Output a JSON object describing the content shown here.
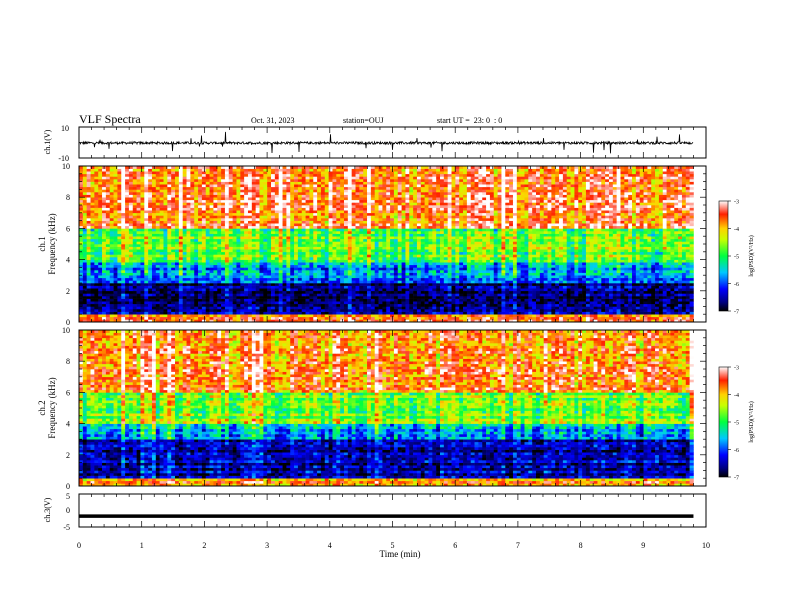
{
  "header": {
    "title": "VLF Spectra",
    "date": "Oct. 31, 2023",
    "station": "station=OUJ",
    "start": "start UT =  23: 0  : 0"
  },
  "chart_data": [
    {
      "type": "line",
      "panel": "ch1-waveform",
      "ylabel": "ch.1(V)",
      "ylim": [
        -10,
        10
      ],
      "yticks": [
        "10",
        "-10"
      ],
      "xlim": [
        0,
        10
      ],
      "series": [
        {
          "description": "dense noisy waveform around 0 V, amplitude mostly within ±2 V with spikes",
          "color": "#000000"
        }
      ]
    },
    {
      "type": "heatmap",
      "panel": "ch1-spectrogram",
      "ylabel": "ch.1\nFrequency (kHz)",
      "ylabel_line1": "ch.1",
      "ylabel_line2": "Frequency (kHz)",
      "ylim": [
        0,
        10
      ],
      "yticks": [
        "0",
        "2",
        "4",
        "6",
        "8",
        "10"
      ],
      "xlim": [
        0,
        9.8
      ],
      "colorbar": {
        "label": "log(PSD)(V²/Hz)",
        "ticks": [
          "-3",
          "-4",
          "-5",
          "-6",
          "-7"
        ],
        "range": [
          -7,
          -3
        ]
      },
      "bands": [
        {
          "fmin": 0.0,
          "fmax": 0.5,
          "level": -3.6
        },
        {
          "fmin": 0.5,
          "fmax": 2.5,
          "level": -6.7
        },
        {
          "fmin": 2.5,
          "fmax": 3.8,
          "level": -5.8
        },
        {
          "fmin": 3.8,
          "fmax": 6.0,
          "level": -4.8
        },
        {
          "fmin": 6.0,
          "fmax": 10.0,
          "level": -3.6
        }
      ]
    },
    {
      "type": "heatmap",
      "panel": "ch2-spectrogram",
      "ylabel": "ch.2\nFrequency (kHz)",
      "ylabel_line1": "ch.2",
      "ylabel_line2": "Frequency (kHz)",
      "ylim": [
        0,
        10
      ],
      "yticks": [
        "0",
        "2",
        "4",
        "6",
        "8",
        "10"
      ],
      "xlim": [
        0,
        9.8
      ],
      "colorbar": {
        "label": "log(PSD)(V²/Hz)",
        "ticks": [
          "-3",
          "-4",
          "-5",
          "-6",
          "-7"
        ],
        "range": [
          -7,
          -3
        ]
      },
      "bands": [
        {
          "fmin": 0.0,
          "fmax": 0.5,
          "level": -3.8
        },
        {
          "fmin": 0.5,
          "fmax": 3.0,
          "level": -6.5
        },
        {
          "fmin": 3.0,
          "fmax": 4.0,
          "level": -5.7
        },
        {
          "fmin": 4.0,
          "fmax": 6.0,
          "level": -4.7
        },
        {
          "fmin": 6.0,
          "fmax": 10.0,
          "level": -3.7
        }
      ]
    },
    {
      "type": "line",
      "panel": "ch3-waveform",
      "ylabel": "ch.3(V)",
      "ylim": [
        -5,
        5
      ],
      "yticks": [
        "5",
        "0",
        "-5"
      ],
      "xlim": [
        0,
        10
      ],
      "series": [
        {
          "x": [
            0,
            9.8
          ],
          "y": [
            -1.7,
            -1.7
          ],
          "color": "#000000"
        }
      ]
    }
  ],
  "xaxis": {
    "label": "Time (min)",
    "ticks": [
      "0",
      "1",
      "2",
      "3",
      "4",
      "5",
      "6",
      "7",
      "8",
      "9",
      "10"
    ],
    "range": [
      0,
      10
    ]
  }
}
